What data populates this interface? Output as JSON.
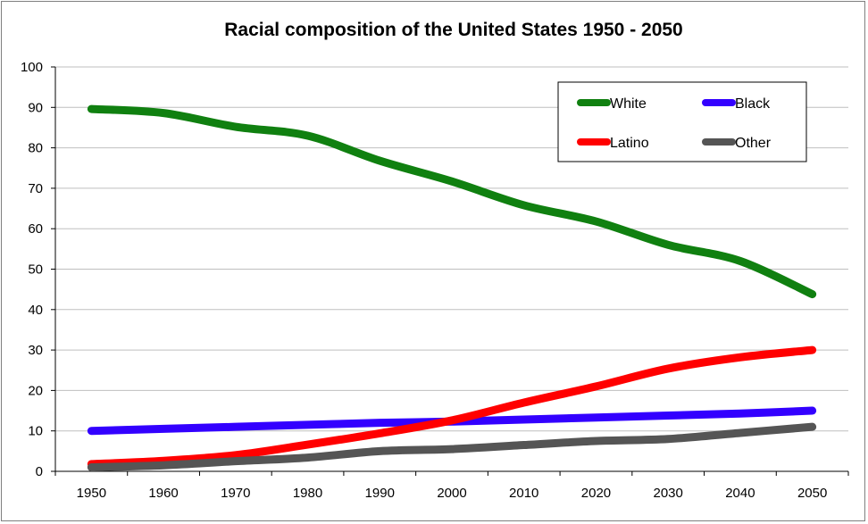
{
  "chart_data": {
    "type": "line",
    "title": "Racial composition of the United States 1950 - 2050",
    "xlabel": "",
    "ylabel": "",
    "categories": [
      "1950",
      "1960",
      "1970",
      "1980",
      "1990",
      "2000",
      "2010",
      "2020",
      "2030",
      "2040",
      "2050"
    ],
    "ylim": [
      0,
      100
    ],
    "yticks": [
      "0",
      "10",
      "20",
      "30",
      "40",
      "50",
      "60",
      "70",
      "80",
      "90",
      "100"
    ],
    "grid": true,
    "legend_position": "top-right",
    "series": [
      {
        "name": "White",
        "color": "#108010",
        "values": [
          89.6,
          88.6,
          85.2,
          83.0,
          76.8,
          71.7,
          65.8,
          61.8,
          56.0,
          52.0,
          43.8
        ]
      },
      {
        "name": "Black",
        "color": "#3300ff",
        "values": [
          10.0,
          10.5,
          11.0,
          11.5,
          12.0,
          12.3,
          12.8,
          13.3,
          13.8,
          14.3,
          15.0
        ]
      },
      {
        "name": "Latino",
        "color": "#ff0000",
        "values": [
          1.8,
          2.6,
          4.0,
          6.6,
          9.4,
          12.6,
          17.0,
          21.0,
          25.4,
          28.2,
          30.0
        ]
      },
      {
        "name": "Other",
        "color": "#555555",
        "values": [
          1.0,
          1.5,
          2.5,
          3.4,
          5.0,
          5.5,
          6.5,
          7.5,
          8.0,
          9.5,
          11.0
        ]
      }
    ]
  }
}
